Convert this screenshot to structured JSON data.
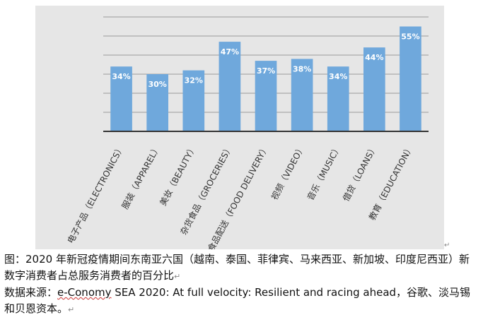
{
  "chart_data": {
    "type": "bar",
    "categories": [
      "电子产品（ELECTRONICS）",
      "服装（APPAREL）",
      "美妆（BEAUTY）",
      "杂货食品（GROCERIES）",
      "食品配送（FOOD DELIVERY）",
      "视频（VIDEO）",
      "音乐（MUSIC）",
      "借贷（LOANS）",
      "教育（EDUCATION）"
    ],
    "values": [
      34,
      30,
      32,
      47,
      37,
      38,
      34,
      44,
      55
    ],
    "data_labels": [
      "34%",
      "30%",
      "32%",
      "47%",
      "37%",
      "38%",
      "34%",
      "44%",
      "55%"
    ],
    "ylim": [
      0,
      60
    ],
    "grid": true,
    "legend": "none",
    "bar_color": "#6fa8dc",
    "grid_color": "#9a9a9a",
    "background_color": "#e6e6e6"
  },
  "caption": {
    "line1": "图：2020 年新冠疫情期间东南亚六国（越南、泰国、菲律宾、马来西亚、新加坡、印度尼西亚）新数字消费者占总服务消费者的百分比",
    "source_prefix": "数据来源：",
    "source_brand": "e-Conomy",
    "source_rest": " SEA 2020: At full velocity: Resilient and racing ahead，谷歌、淡马锡和贝恩资本。"
  },
  "return_mark": "↵"
}
